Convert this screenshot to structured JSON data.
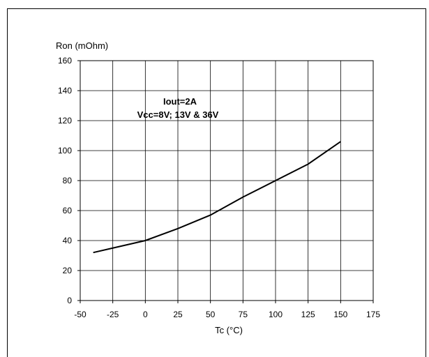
{
  "corner_label": "",
  "chart_data": {
    "type": "line",
    "title": "",
    "ylabel": "Ron (mOhm)",
    "xlabel": "Tc (°C)",
    "annotation": [
      "Iout=2A",
      "Vcc=8V; 13V & 36V"
    ],
    "xlim": [
      -50,
      175
    ],
    "ylim": [
      0,
      160
    ],
    "x_ticks": [
      -50,
      -25,
      0,
      25,
      50,
      75,
      100,
      125,
      150,
      175
    ],
    "y_ticks": [
      0,
      20,
      40,
      60,
      80,
      100,
      120,
      140,
      160
    ],
    "grid": true,
    "series": [
      {
        "x": [
          -40,
          -25,
          0,
          25,
          50,
          75,
          100,
          125,
          150
        ],
        "y": [
          32,
          35,
          40,
          48,
          57,
          69,
          80,
          91,
          106
        ]
      }
    ]
  }
}
